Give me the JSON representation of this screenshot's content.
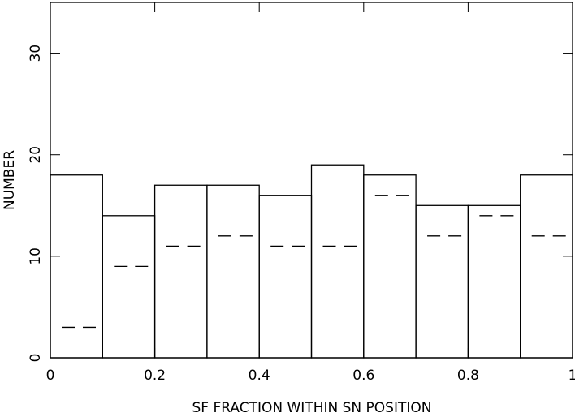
{
  "chart_data": {
    "type": "histogram",
    "xlabel": "SF FRACTION WITHIN SN POSITION",
    "ylabel": "NUMBER",
    "bins": [
      0,
      0.1,
      0.2,
      0.3,
      0.4,
      0.5,
      0.6,
      0.7,
      0.8,
      0.9,
      1
    ],
    "series": [
      {
        "style": "solid",
        "color": "#000000",
        "values": [
          18,
          14,
          17,
          17,
          16,
          19,
          18,
          15,
          15,
          18
        ]
      },
      {
        "style": "dashed",
        "color": "#000000",
        "values": [
          3,
          9,
          11,
          12,
          11,
          11,
          16,
          12,
          14,
          12
        ]
      }
    ],
    "xlim": [
      0,
      1
    ],
    "ylim": [
      0,
      35
    ],
    "xticks": [
      0,
      0.2,
      0.4,
      0.6,
      0.8,
      1
    ],
    "yticks": [
      0,
      10,
      20,
      30
    ]
  }
}
